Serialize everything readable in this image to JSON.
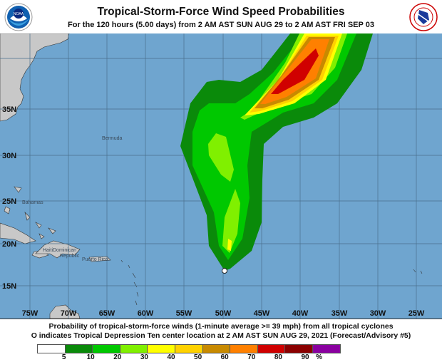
{
  "header": {
    "title": "Tropical-Storm-Force Wind Speed Probabilities",
    "subtitle": "For the 120 hours (5.00 days) from 2 AM AST SUN AUG 29 to 2 AM AST FRI SEP 03",
    "left_logo": "NOAA",
    "right_logo": "NATIONAL WEATHER SERVICE"
  },
  "map": {
    "lon_labels": [
      "75W",
      "70W",
      "65W",
      "60W",
      "55W",
      "50W",
      "45W",
      "40W",
      "35W",
      "30W",
      "25W"
    ],
    "lat_labels": [
      "35N",
      "30N",
      "25N",
      "20N",
      "15N"
    ],
    "place_labels": {
      "bermuda": "Bermuda",
      "bahamas": "Bahamas",
      "haiti": "Haiti",
      "dominican": "Dominican",
      "republic": "Republic",
      "puerto_rico": "Puerto Rico"
    },
    "colors": {
      "ocean": "#6fa5cf",
      "land": "#c8c8c8",
      "grid": "#4a6f8c"
    },
    "center_marker": "open-circle"
  },
  "footer": {
    "caption_line1": "Probability of tropical-storm-force winds (1-minute average >= 39 mph) from all tropical cyclones",
    "caption_line2": "O indicates Tropical Depression Ten center location at 2 AM AST SUN AUG 29, 2021 (Forecast/Advisory #5)"
  },
  "legend": {
    "colors": [
      "#ffffff",
      "#0a8a0a",
      "#00c800",
      "#80f000",
      "#ffff00",
      "#ffd200",
      "#c88a00",
      "#ff8000",
      "#d00000",
      "#8b0000",
      "#8a00a0"
    ],
    "tick_labels": [
      "5",
      "10",
      "20",
      "30",
      "40",
      "50",
      "60",
      "70",
      "80",
      "90",
      "%"
    ]
  }
}
